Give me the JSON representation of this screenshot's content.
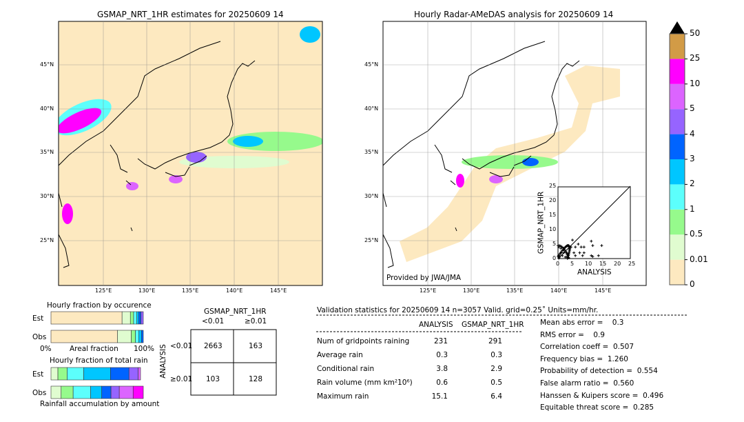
{
  "left_map": {
    "title": "GSMAP_NRT_1HR estimates for 20250609 14"
  },
  "right_map": {
    "title": "Hourly Radar-AMeDAS analysis for 20250609 14",
    "credit": "Provided by JWA/JMA"
  },
  "lon_ticks": [
    "125°E",
    "130°E",
    "135°E",
    "140°E",
    "145°E"
  ],
  "lat_ticks": [
    "45°N",
    "40°N",
    "35°N",
    "30°N",
    "25°N"
  ],
  "colorbar": {
    "labels": [
      "0",
      "0.01",
      "0.5",
      "1",
      "2",
      "3",
      "4",
      "5",
      "10",
      "25",
      "50"
    ],
    "colors": [
      "#fde9c0",
      "#e0fcd0",
      "#96fa8c",
      "#5cfffc",
      "#00c6ff",
      "#0064ff",
      "#9664ff",
      "#dc64ff",
      "#ff00ff",
      "#d29b46"
    ],
    "extend": "#000000"
  },
  "chart_data": [
    {
      "type": "scatter",
      "xlabel": "ANALYSIS",
      "ylabel": "GSMAP_NRT_1HR",
      "xlim": [
        0,
        25
      ],
      "ylim": [
        0,
        25
      ],
      "ticks": [
        "0",
        "5",
        "10",
        "15",
        "20",
        "25"
      ],
      "points": [
        [
          0.5,
          0.5
        ],
        [
          1,
          2
        ],
        [
          1.5,
          1
        ],
        [
          2,
          3
        ],
        [
          0.3,
          4
        ],
        [
          2.5,
          0.5
        ],
        [
          3,
          2
        ],
        [
          3.5,
          1.5
        ],
        [
          4,
          3
        ],
        [
          4.5,
          4
        ],
        [
          5,
          6.4
        ],
        [
          5.5,
          2
        ],
        [
          6,
          1
        ],
        [
          6,
          4
        ],
        [
          7,
          5
        ],
        [
          7.5,
          2
        ],
        [
          8,
          4
        ],
        [
          8.5,
          1
        ],
        [
          9,
          4
        ],
        [
          9,
          2
        ],
        [
          11.5,
          6
        ],
        [
          12,
          4.5
        ],
        [
          11.5,
          1
        ],
        [
          14,
          1
        ],
        [
          15.1,
          4.5
        ],
        [
          12,
          0.7
        ],
        [
          2,
          2
        ],
        [
          3,
          0.5
        ],
        [
          1,
          3.5
        ],
        [
          0.2,
          1
        ]
      ]
    },
    {
      "type": "bar",
      "title": "Hourly fraction by occurence",
      "xlabel": "Areal fraction",
      "xticks": [
        "0%",
        "100%"
      ],
      "categories": [
        "Est",
        "Obs"
      ],
      "series": {
        "Est": [
          0.77,
          0.09,
          0.035,
          0.035,
          0.02,
          0.025,
          0.025
        ],
        "Obs": [
          0.72,
          0.15,
          0.045,
          0.035,
          0.03,
          0.02
        ]
      }
    },
    {
      "type": "bar",
      "title": "Hourly fraction of total rain",
      "xlabel": "Rainfall accumulation by amount",
      "categories": [
        "Est",
        "Obs"
      ],
      "series": {
        "Est": [
          0.075,
          0.1,
          0.18,
          0.29,
          0.2,
          0.1,
          0.025
        ],
        "Obs": [
          0.11,
          0.13,
          0.19,
          0.12,
          0.1,
          0.09,
          0.15,
          0.11
        ]
      }
    },
    {
      "type": "table",
      "title": "GSMAP_NRT_1HR",
      "col_headers": [
        "<0.01",
        "≥0.01"
      ],
      "row_label": "ANALYSIS",
      "row_headers": [
        "<0.01",
        "≥0.01"
      ],
      "cells": [
        [
          "2663",
          "163"
        ],
        [
          "103",
          "128"
        ]
      ]
    }
  ],
  "stats": {
    "header": "Validation statistics for 20250609 14  n=3057 Valid. grid=0.25˚ Units=mm/hr.",
    "cols": [
      "ANALYSIS",
      "GSMAP_NRT_1HR"
    ],
    "rows": [
      {
        "label": "Num of gridpoints raining",
        "a": "231",
        "g": "291"
      },
      {
        "label": "Average rain",
        "a": "0.3",
        "g": "0.3"
      },
      {
        "label": "Conditional rain",
        "a": "3.8",
        "g": "2.9"
      },
      {
        "label": "Rain volume (mm km²10⁶)",
        "a": "0.6",
        "g": "0.5"
      },
      {
        "label": "Maximum rain",
        "a": "15.1",
        "g": "6.4"
      }
    ],
    "scores": [
      "Mean abs error =    0.3",
      "RMS error =    0.9",
      "Correlation coeff =  0.507",
      "Frequency bias =  1.260",
      "Probability of detection =  0.554",
      "False alarm ratio =  0.560",
      "Hanssen & Kuipers score =  0.496",
      "Equitable threat score =  0.285"
    ]
  }
}
